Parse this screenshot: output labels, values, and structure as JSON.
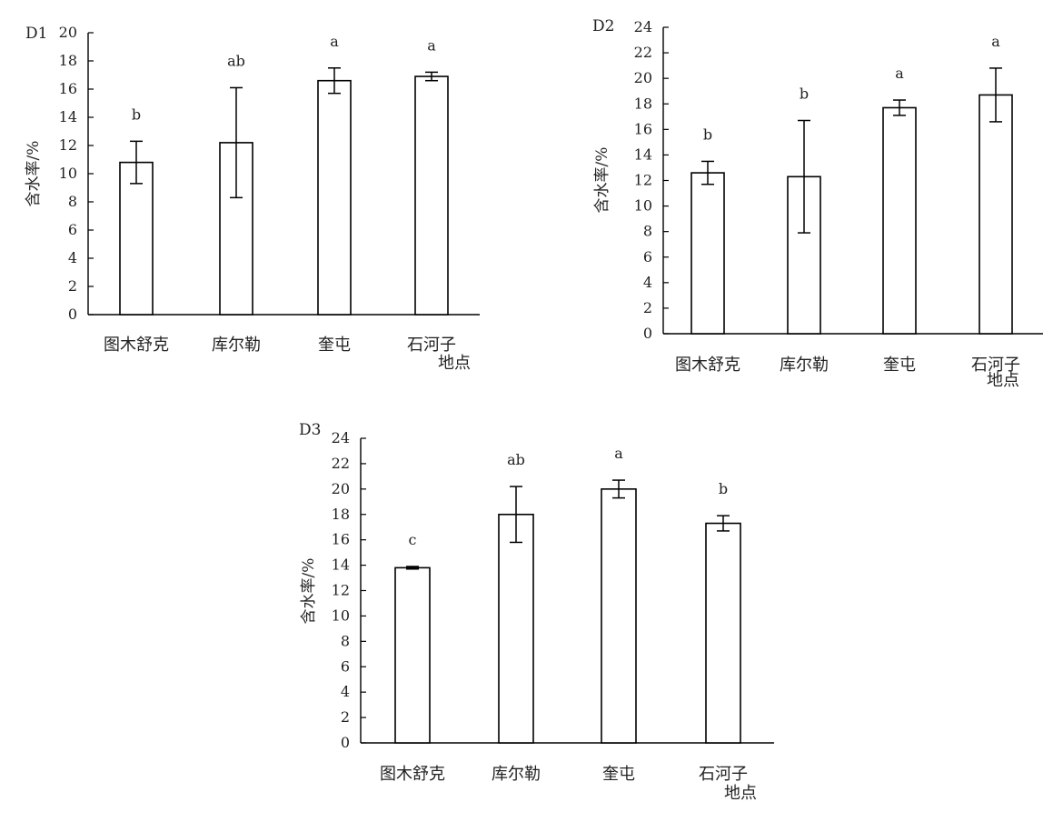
{
  "chart_data": [
    {
      "type": "bar",
      "panel_label": "D1",
      "categories": [
        "图木舒克",
        "库尔勒",
        "奎屯",
        "石河子"
      ],
      "values": [
        10.8,
        12.2,
        16.6,
        16.9
      ],
      "error": [
        1.5,
        3.9,
        0.9,
        0.3
      ],
      "significance": [
        "b",
        "ab",
        "a",
        "a"
      ],
      "ylabel": "含水率/%",
      "xlabel": "地点",
      "ylim": [
        0,
        20
      ],
      "ytick_step": 2,
      "grid": false
    },
    {
      "type": "bar",
      "panel_label": "D2",
      "categories": [
        "图木舒克",
        "库尔勒",
        "奎屯",
        "石河子"
      ],
      "values": [
        12.6,
        12.3,
        17.7,
        18.7
      ],
      "error": [
        0.9,
        4.4,
        0.6,
        2.1
      ],
      "significance": [
        "b",
        "b",
        "a",
        "a"
      ],
      "ylabel": "含水率/%",
      "xlabel": "地点",
      "ylim": [
        0,
        24
      ],
      "ytick_step": 2,
      "grid": false
    },
    {
      "type": "bar",
      "panel_label": "D3",
      "categories": [
        "图木舒克",
        "库尔勒",
        "奎屯",
        "石河子"
      ],
      "values": [
        13.8,
        18.0,
        20.0,
        17.3
      ],
      "error": [
        0.1,
        2.2,
        0.7,
        0.6
      ],
      "significance": [
        "c",
        "ab",
        "a",
        "b"
      ],
      "ylabel": "含水率/%",
      "xlabel": "地点",
      "ylim": [
        0,
        24
      ],
      "ytick_step": 2,
      "grid": false
    }
  ]
}
